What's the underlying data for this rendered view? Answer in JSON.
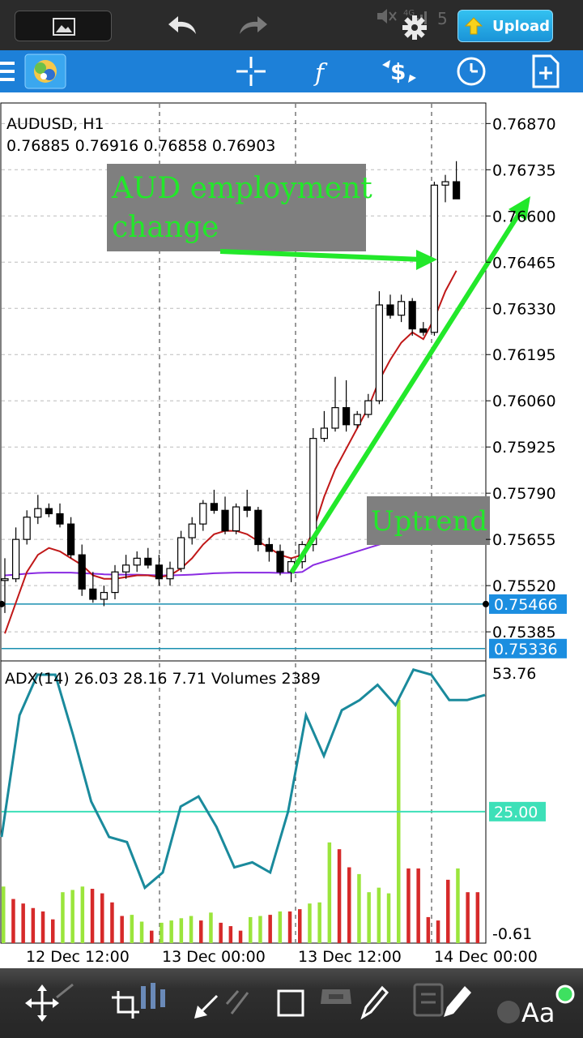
{
  "upload_label": "Upload",
  "symbol": {
    "name": "AUDUSD, H1",
    "ohlc": "0.76885 0.76916 0.76858 0.76903"
  },
  "price_axis": [
    "0.76870",
    "0.76735",
    "0.76600",
    "0.76465",
    "0.76330",
    "0.76195",
    "0.76060",
    "0.75925",
    "0.75790",
    "0.75655",
    "0.75520",
    "0.75385"
  ],
  "price_markers": [
    {
      "label": "0.75466",
      "value": 0.75466
    },
    {
      "label": "0.75336",
      "value": 0.75336
    }
  ],
  "annotations": {
    "event": [
      "AUD employment",
      "change"
    ],
    "trend": "Uptrend"
  },
  "indicator": {
    "header": "ADX(14) 26.03 28.16 7.71 Volumes 2389",
    "axis_max": "53.76",
    "level": "25.00",
    "axis_min": "-0.61"
  },
  "time_axis": [
    "12 Dec 12:00",
    "13 Dec 00:00",
    "13 Dec 12:00",
    "14 Dec 00:00"
  ],
  "colors": {
    "toolbar": "#1d80d8",
    "bull_volume": "#9be53c",
    "bear_volume": "#d62a2a",
    "adx": "#1a8a9c",
    "arrow": "#22e82a",
    "level_line": "#3de0b8"
  },
  "chart_data": {
    "type": "candlestick",
    "title": "AUDUSD, H1",
    "ylim": [
      0.753,
      0.7693
    ],
    "candles": [
      {
        "o": 0.75535,
        "h": 0.756,
        "l": 0.7544,
        "c": 0.7554
      },
      {
        "o": 0.7554,
        "h": 0.7569,
        "l": 0.7553,
        "c": 0.75655
      },
      {
        "o": 0.75655,
        "h": 0.7574,
        "l": 0.7564,
        "c": 0.7572
      },
      {
        "o": 0.7572,
        "h": 0.75785,
        "l": 0.757,
        "c": 0.75745
      },
      {
        "o": 0.75745,
        "h": 0.7576,
        "l": 0.7572,
        "c": 0.7573
      },
      {
        "o": 0.7573,
        "h": 0.7576,
        "l": 0.7569,
        "c": 0.757
      },
      {
        "o": 0.757,
        "h": 0.7572,
        "l": 0.756,
        "c": 0.7561
      },
      {
        "o": 0.7561,
        "h": 0.7564,
        "l": 0.7549,
        "c": 0.7551
      },
      {
        "o": 0.7551,
        "h": 0.7556,
        "l": 0.7547,
        "c": 0.7548
      },
      {
        "o": 0.7548,
        "h": 0.7552,
        "l": 0.7546,
        "c": 0.755
      },
      {
        "o": 0.755,
        "h": 0.7558,
        "l": 0.7548,
        "c": 0.7556
      },
      {
        "o": 0.7556,
        "h": 0.7561,
        "l": 0.7554,
        "c": 0.7558
      },
      {
        "o": 0.7558,
        "h": 0.7562,
        "l": 0.7556,
        "c": 0.756
      },
      {
        "o": 0.756,
        "h": 0.7563,
        "l": 0.7557,
        "c": 0.7558
      },
      {
        "o": 0.7558,
        "h": 0.7561,
        "l": 0.7552,
        "c": 0.7554
      },
      {
        "o": 0.7554,
        "h": 0.7559,
        "l": 0.7552,
        "c": 0.7557
      },
      {
        "o": 0.7557,
        "h": 0.7568,
        "l": 0.7556,
        "c": 0.7566
      },
      {
        "o": 0.7566,
        "h": 0.7572,
        "l": 0.7564,
        "c": 0.757
      },
      {
        "o": 0.757,
        "h": 0.7577,
        "l": 0.7568,
        "c": 0.7576
      },
      {
        "o": 0.7576,
        "h": 0.758,
        "l": 0.7573,
        "c": 0.7574
      },
      {
        "o": 0.7574,
        "h": 0.7578,
        "l": 0.7567,
        "c": 0.7568
      },
      {
        "o": 0.7568,
        "h": 0.7576,
        "l": 0.7567,
        "c": 0.7575
      },
      {
        "o": 0.7575,
        "h": 0.758,
        "l": 0.7572,
        "c": 0.7574
      },
      {
        "o": 0.7574,
        "h": 0.7575,
        "l": 0.7562,
        "c": 0.7564
      },
      {
        "o": 0.7564,
        "h": 0.7566,
        "l": 0.7559,
        "c": 0.7562
      },
      {
        "o": 0.7562,
        "h": 0.7564,
        "l": 0.7555,
        "c": 0.7556
      },
      {
        "o": 0.7556,
        "h": 0.756,
        "l": 0.7553,
        "c": 0.7559
      },
      {
        "o": 0.7559,
        "h": 0.7565,
        "l": 0.7557,
        "c": 0.7564
      },
      {
        "o": 0.7564,
        "h": 0.7598,
        "l": 0.7562,
        "c": 0.7595
      },
      {
        "o": 0.7595,
        "h": 0.7603,
        "l": 0.7594,
        "c": 0.7598
      },
      {
        "o": 0.7598,
        "h": 0.7613,
        "l": 0.7597,
        "c": 0.7604
      },
      {
        "o": 0.7604,
        "h": 0.7612,
        "l": 0.7597,
        "c": 0.7599
      },
      {
        "o": 0.7599,
        "h": 0.7603,
        "l": 0.7598,
        "c": 0.7602
      },
      {
        "o": 0.7602,
        "h": 0.7608,
        "l": 0.7601,
        "c": 0.7606
      },
      {
        "o": 0.7606,
        "h": 0.7638,
        "l": 0.7605,
        "c": 0.7634
      },
      {
        "o": 0.7634,
        "h": 0.7637,
        "l": 0.763,
        "c": 0.7631
      },
      {
        "o": 0.7631,
        "h": 0.7637,
        "l": 0.7629,
        "c": 0.7635
      },
      {
        "o": 0.7635,
        "h": 0.7636,
        "l": 0.7625,
        "c": 0.7627
      },
      {
        "o": 0.7627,
        "h": 0.7629,
        "l": 0.7625,
        "c": 0.7626
      },
      {
        "o": 0.7626,
        "h": 0.767,
        "l": 0.7625,
        "c": 0.7669
      },
      {
        "o": 0.7669,
        "h": 0.7672,
        "l": 0.7664,
        "c": 0.767
      },
      {
        "o": 0.767,
        "h": 0.7676,
        "l": 0.7665,
        "c": 0.7665
      }
    ],
    "ma_red": [
      0.7538,
      0.7547,
      0.7556,
      0.7561,
      0.7563,
      0.7562,
      0.756,
      0.7558,
      0.7555,
      0.7554,
      0.7554,
      0.75545,
      0.7555,
      0.7555,
      0.75545,
      0.7555,
      0.7557,
      0.756,
      0.7564,
      0.7567,
      0.7568,
      0.7568,
      0.7567,
      0.7565,
      0.7563,
      0.7561,
      0.756,
      0.7561,
      0.7568,
      0.7578,
      0.7586,
      0.7592,
      0.7598,
      0.7604,
      0.7612,
      0.7618,
      0.7623,
      0.7626,
      0.7624,
      0.763,
      0.7638,
      0.7644
    ],
    "ma_purple": [
      0.7555,
      0.75552,
      0.75555,
      0.75557,
      0.75558,
      0.75558,
      0.75558,
      0.75556,
      0.75555,
      0.75553,
      0.75552,
      0.75552,
      0.75552,
      0.75551,
      0.7555,
      0.7555,
      0.75551,
      0.75552,
      0.75554,
      0.75556,
      0.75557,
      0.75558,
      0.75558,
      0.75558,
      0.75558,
      0.75557,
      0.75557,
      0.7556,
      0.7558,
      0.7559,
      0.756,
      0.7561,
      0.7562,
      0.7563,
      0.7564,
      0.7565,
      0.7566,
      0.75665,
      0.7567,
      0.75675,
      0.7568,
      0.7569
    ],
    "adx": [
      20,
      44,
      52,
      52,
      40,
      27,
      20,
      19,
      10,
      13,
      26,
      28,
      22,
      14,
      15,
      13,
      25,
      44,
      36,
      45,
      47,
      50,
      46,
      53,
      52,
      47,
      47,
      48
    ],
    "adx_ylim": [
      -0.61,
      53.76
    ],
    "adx_level": 25.0,
    "volumes": [
      {
        "v": 1000,
        "up": true
      },
      {
        "v": 780,
        "up": false
      },
      {
        "v": 700,
        "up": false
      },
      {
        "v": 620,
        "up": false
      },
      {
        "v": 560,
        "up": false
      },
      {
        "v": 420,
        "up": false
      },
      {
        "v": 900,
        "up": true
      },
      {
        "v": 940,
        "up": true
      },
      {
        "v": 1000,
        "up": true
      },
      {
        "v": 960,
        "up": false
      },
      {
        "v": 880,
        "up": false
      },
      {
        "v": 720,
        "up": false
      },
      {
        "v": 480,
        "up": false
      },
      {
        "v": 500,
        "up": true
      },
      {
        "v": 380,
        "up": true
      },
      {
        "v": 220,
        "up": false
      },
      {
        "v": 360,
        "up": true
      },
      {
        "v": 400,
        "up": true
      },
      {
        "v": 440,
        "up": true
      },
      {
        "v": 480,
        "up": true
      },
      {
        "v": 400,
        "up": false
      },
      {
        "v": 540,
        "up": true
      },
      {
        "v": 360,
        "up": false
      },
      {
        "v": 300,
        "up": false
      },
      {
        "v": 220,
        "up": false
      },
      {
        "v": 460,
        "up": true
      },
      {
        "v": 480,
        "up": true
      },
      {
        "v": 500,
        "up": false
      },
      {
        "v": 560,
        "up": true
      },
      {
        "v": 560,
        "up": false
      },
      {
        "v": 600,
        "up": false
      },
      {
        "v": 700,
        "up": true
      },
      {
        "v": 720,
        "up": true
      },
      {
        "v": 1780,
        "up": true
      },
      {
        "v": 1660,
        "up": false
      },
      {
        "v": 1340,
        "up": false
      },
      {
        "v": 1220,
        "up": true
      },
      {
        "v": 900,
        "up": true
      },
      {
        "v": 980,
        "up": true
      },
      {
        "v": 880,
        "up": true
      },
      {
        "v": 4300,
        "up": true
      },
      {
        "v": 1320,
        "up": false
      },
      {
        "v": 1320,
        "up": false
      },
      {
        "v": 460,
        "up": false
      },
      {
        "v": 400,
        "up": false
      },
      {
        "v": 1120,
        "up": false
      },
      {
        "v": 1320,
        "up": true
      },
      {
        "v": 900,
        "up": false
      },
      {
        "v": 900,
        "up": false
      }
    ]
  }
}
